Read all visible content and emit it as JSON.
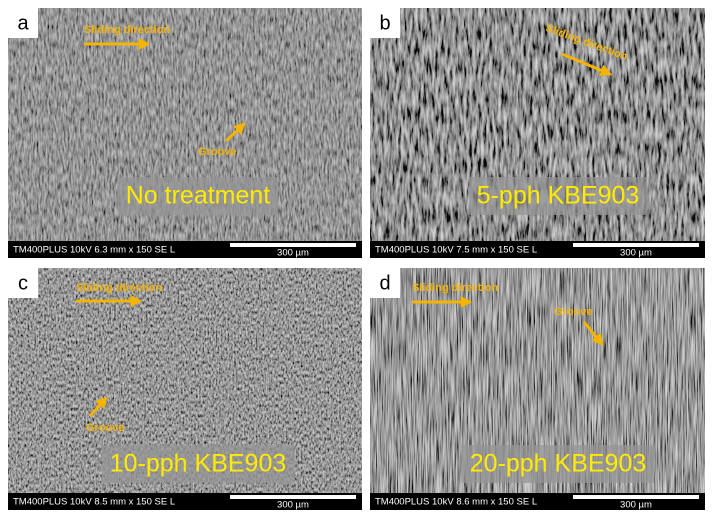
{
  "panels": [
    {
      "letter": "a",
      "sliding": "Sliding direction",
      "groove": "Groove",
      "label": "No treatment",
      "info": "TM400PLUS 10kV 6.3 mm x 150 SE L",
      "scale": "300 µm"
    },
    {
      "letter": "b",
      "sliding": "Sliding direction",
      "label": "5-pph KBE903",
      "info": "TM400PLUS 10kV 7.5 mm x 150 SE L",
      "scale": "300 µm"
    },
    {
      "letter": "c",
      "sliding": "Sliding direction",
      "groove": "Groove",
      "label": "10-pph KBE903",
      "info": "TM400PLUS 10kV 8.5 mm x 150 SE L",
      "scale": "300 µm"
    },
    {
      "letter": "d",
      "sliding": "Sliding direction",
      "groove": "Groove",
      "label": "20-pph KBE903",
      "info": "TM400PLUS 10kV 8.6 mm x 150 SE L",
      "scale": "300 µm"
    }
  ]
}
